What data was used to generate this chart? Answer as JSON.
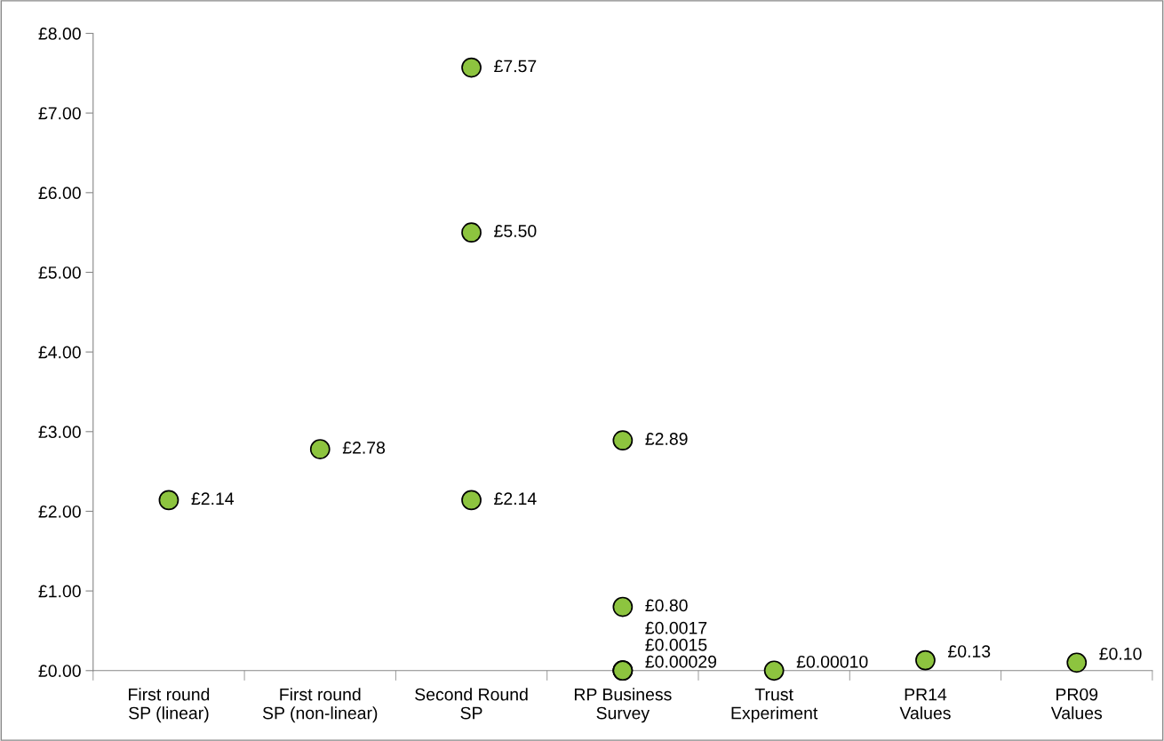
{
  "chart_data": {
    "type": "scatter",
    "categories": [
      "First round\nSP (linear)",
      "First round\nSP (non-linear)",
      "Second Round\nSP",
      "RP Business\nSurvey",
      "Trust\nExperiment",
      "PR14\nValues",
      "PR09\nValues"
    ],
    "series": [
      {
        "color": "#8dc43f",
        "marker": "circle",
        "x": [
          "First round\nSP (linear)",
          "First round\nSP (non-linear)",
          "Second Round\nSP",
          "Second Round\nSP",
          "Second Round\nSP",
          "RP Business\nSurvey",
          "RP Business\nSurvey",
          "RP Business\nSurvey",
          "RP Business\nSurvey",
          "RP Business\nSurvey",
          "Trust\nExperiment",
          "PR14\nValues",
          "PR09\nValues"
        ],
        "values": [
          2.14,
          2.78,
          7.57,
          5.5,
          2.14,
          2.89,
          0.8,
          0.0017,
          0.0015,
          0.00029,
          0.0001,
          0.13,
          0.1
        ],
        "value_labels": [
          "£2.14",
          "£2.78",
          "£7.57",
          "£5.50",
          "£2.14",
          "£2.89",
          "£0.80",
          "£0.0017",
          "£0.0015",
          "£0.00029",
          "£0.00010",
          "£0.13",
          "£0.10"
        ]
      }
    ],
    "ylim": [
      0,
      8
    ],
    "yticks": [
      {
        "value": 0,
        "label": "£0.00"
      },
      {
        "value": 1,
        "label": "£1.00"
      },
      {
        "value": 2,
        "label": "£2.00"
      },
      {
        "value": 3,
        "label": "£3.00"
      },
      {
        "value": 4,
        "label": "£4.00"
      },
      {
        "value": 5,
        "label": "£5.00"
      },
      {
        "value": 6,
        "label": "£6.00"
      },
      {
        "value": 7,
        "label": "£7.00"
      },
      {
        "value": 8,
        "label": "£8.00"
      }
    ],
    "grid": false
  }
}
